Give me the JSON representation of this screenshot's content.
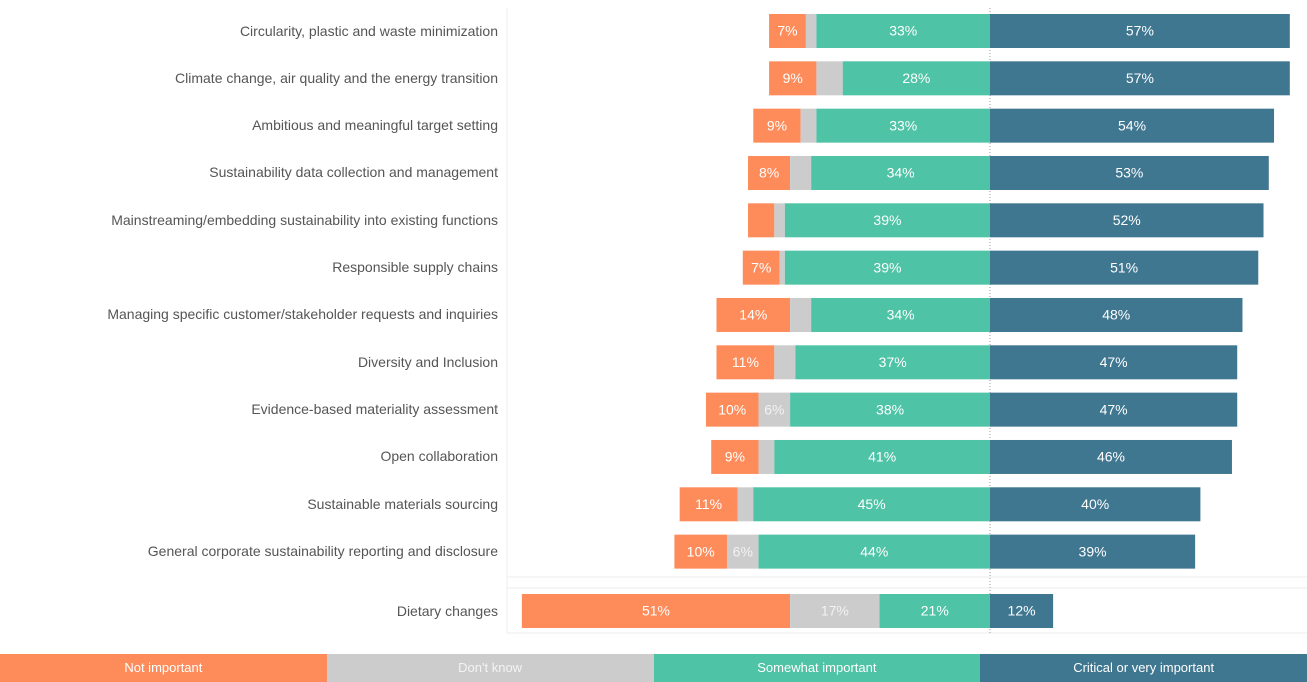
{
  "chart_data": {
    "type": "diverging_bar",
    "categories": [
      "Circularity, plastic and waste minimization",
      "Climate change, air quality and the energy transition",
      "Ambitious and meaningful target setting",
      "Sustainability data collection and management",
      "Mainstreaming/embedding sustainability into existing functions",
      "Responsible supply chains",
      "Managing specific customer/stakeholder requests and inquiries",
      "Diversity and Inclusion",
      "Evidence-based materiality assessment",
      "Open collaboration",
      "Sustainable materials sourcing",
      "General corporate sustainability reporting and disclosure",
      "Dietary changes"
    ],
    "series": [
      {
        "name": "Not important",
        "color": "#fe8c5a",
        "values": [
          7,
          9,
          9,
          8,
          5,
          7,
          14,
          11,
          10,
          9,
          11,
          10,
          51
        ],
        "value_labels": [
          "7%",
          "9%",
          "9%",
          "8%",
          null,
          "7%",
          "14%",
          "11%",
          "10%",
          "9%",
          "11%",
          "10%",
          "51%"
        ]
      },
      {
        "name": "Don't know",
        "color": "#cccccc",
        "values": [
          2,
          5,
          3,
          4,
          2,
          1,
          4,
          4,
          6,
          3,
          3,
          6,
          17
        ],
        "value_labels": [
          null,
          null,
          null,
          null,
          null,
          null,
          null,
          null,
          "6%",
          null,
          null,
          "6%",
          "17%"
        ]
      },
      {
        "name": "Somewhat important",
        "color": "#4ec3a5",
        "values": [
          33,
          28,
          33,
          34,
          39,
          39,
          34,
          37,
          38,
          41,
          45,
          44,
          21
        ],
        "value_labels": [
          "33%",
          "28%",
          "33%",
          "34%",
          "39%",
          "39%",
          "34%",
          "37%",
          "38%",
          "41%",
          "45%",
          "44%",
          "21%"
        ]
      },
      {
        "name": "Critical or very important",
        "color": "#3f7690",
        "values": [
          57,
          57,
          54,
          53,
          52,
          51,
          48,
          47,
          47,
          46,
          40,
          39,
          12
        ],
        "value_labels": [
          "57%",
          "57%",
          "54%",
          "53%",
          "52%",
          "51%",
          "48%",
          "47%",
          "47%",
          "46%",
          "40%",
          "39%",
          "12%"
        ]
      }
    ]
  }
}
